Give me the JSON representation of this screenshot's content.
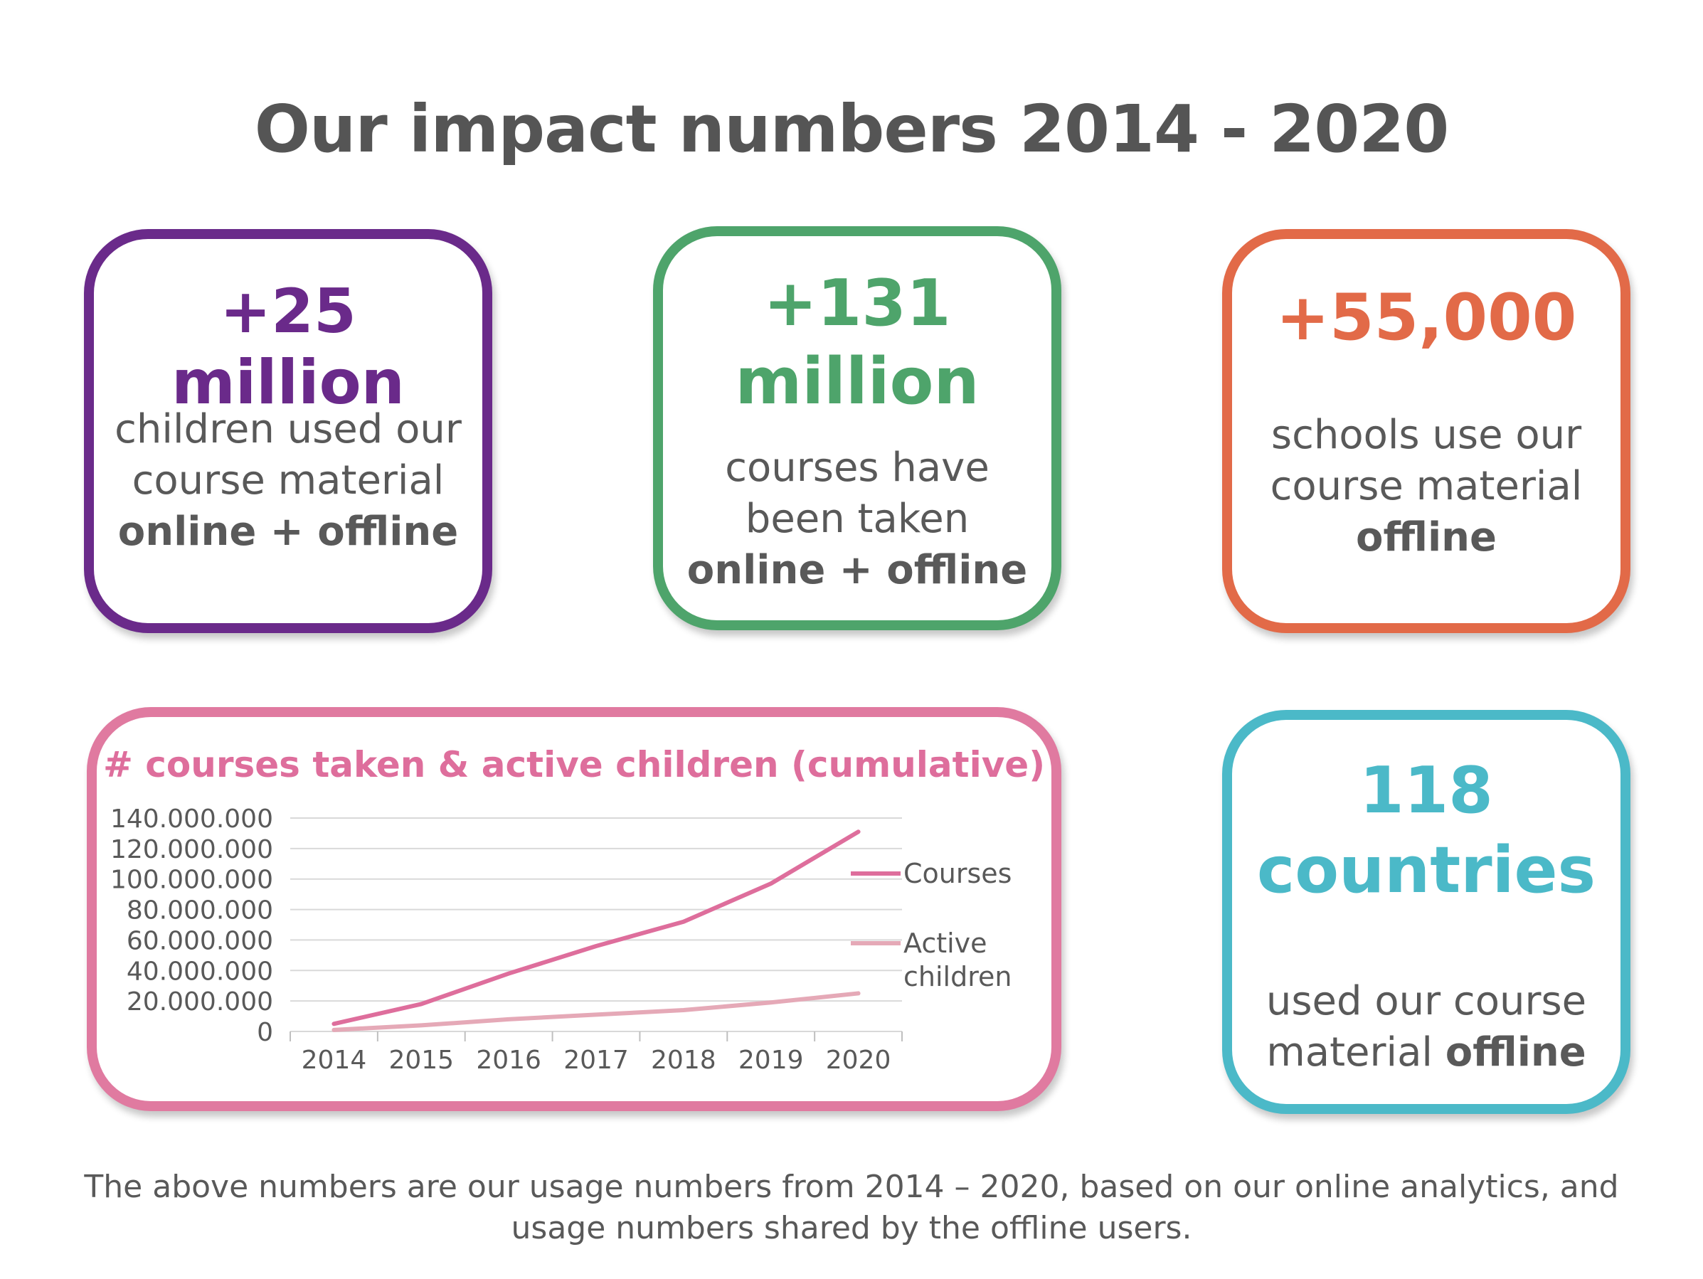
{
  "title": "Our impact numbers 2014 - 2020",
  "colors": {
    "purple": "#6a2a8a",
    "green": "#4ea46b",
    "orange": "#e26a48",
    "teal": "#4bb9c8",
    "pink": "#e07aa0",
    "courses_line": "#de6e9c",
    "children_line": "#e5a9b7"
  },
  "cards": {
    "children": {
      "value": "+25 million",
      "line1": "children used our",
      "line2": "course material",
      "bold": "online + offline"
    },
    "courses": {
      "value_line1": "+131",
      "value_line2": "million",
      "line1": "courses have",
      "line2": "been taken",
      "bold": "online + offline"
    },
    "schools": {
      "value": "+55,000",
      "line1": "schools use our",
      "line2": "course material",
      "bold": "offline"
    },
    "countries": {
      "value_line1": "118",
      "value_line2": "countries",
      "line1": "used our course",
      "line2_normal": "material ",
      "line2_bold": "offline"
    }
  },
  "footnote": {
    "line1": "The above numbers are our usage numbers from 2014 – 2020, based on our online analytics, and",
    "line2": "usage numbers shared by the offline users."
  },
  "chart_data": {
    "type": "line",
    "title": "# courses taken & active children (cumulative)",
    "categories": [
      "2014",
      "2015",
      "2016",
      "2017",
      "2018",
      "2019",
      "2020"
    ],
    "y_ticks": [
      "140.000.000",
      "120.000.000",
      "100.000.000",
      "80.000.000",
      "60.000.000",
      "40.000.000",
      "20.000.000",
      "0"
    ],
    "ylim": [
      0,
      140000000
    ],
    "grid": true,
    "legend_position": "right",
    "series": [
      {
        "name": "Courses",
        "values": [
          5000000,
          18000000,
          38000000,
          56000000,
          72000000,
          97000000,
          131000000
        ]
      },
      {
        "name": "Active children",
        "values": [
          1000000,
          4000000,
          8000000,
          11000000,
          14000000,
          19000000,
          25000000
        ]
      }
    ],
    "legend": [
      {
        "line1": "Courses",
        "line2": ""
      },
      {
        "line1": "Active",
        "line2": "children"
      }
    ]
  }
}
